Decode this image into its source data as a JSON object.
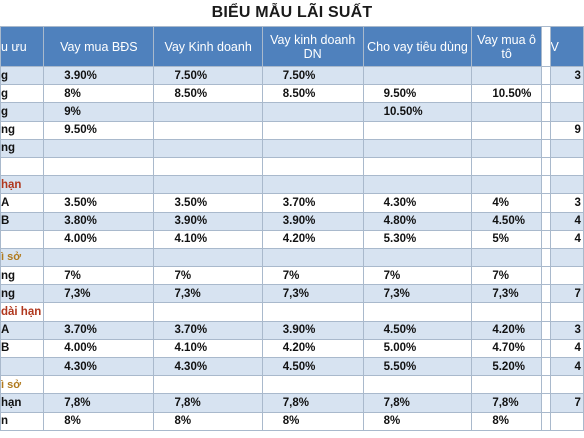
{
  "title": "BIỂU MẪU LÃI SUẤT",
  "headers": [
    "u ưu",
    "Vay mua BĐS",
    "Vay Kinh doanh",
    "Vay kinh doanh DN",
    "Cho vay tiêu dùng",
    "Vay mua ô tô",
    "V"
  ],
  "rows": [
    {
      "style": "shaded",
      "label": "g",
      "labelClass": "",
      "cells": [
        "3.90%",
        "7.50%",
        "7.50%",
        "",
        "",
        "3"
      ]
    },
    {
      "style": "white",
      "label": "g",
      "labelClass": "",
      "cells": [
        "8%",
        "8.50%",
        "8.50%",
        "9.50%",
        "10.50%",
        ""
      ]
    },
    {
      "style": "shaded",
      "label": "g",
      "labelClass": "",
      "cells": [
        "9%",
        "",
        "",
        "10.50%",
        "",
        ""
      ]
    },
    {
      "style": "white",
      "label": "ng",
      "labelClass": "",
      "cells": [
        "9.50%",
        "",
        "",
        "",
        "",
        "9"
      ]
    },
    {
      "style": "shaded",
      "label": "ng",
      "labelClass": "",
      "cells": [
        "",
        "",
        "",
        "",
        "",
        ""
      ]
    },
    {
      "style": "white",
      "label": "",
      "labelClass": "",
      "cells": [
        "",
        "",
        "",
        "",
        "",
        ""
      ]
    },
    {
      "style": "shaded",
      "label": "hạn",
      "labelClass": "sec",
      "cells": [
        "",
        "",
        "",
        "",
        "",
        ""
      ]
    },
    {
      "style": "white",
      "label": "A",
      "labelClass": "",
      "cells": [
        "3.50%",
        "3.50%",
        "3.70%",
        "4.30%",
        "4%",
        "3"
      ]
    },
    {
      "style": "shaded",
      "label": "B",
      "labelClass": "",
      "cells": [
        "3.80%",
        "3.90%",
        "3.90%",
        "4.80%",
        "4.50%",
        "4"
      ]
    },
    {
      "style": "white",
      "label": "",
      "labelClass": "",
      "cells": [
        "4.00%",
        "4.10%",
        "4.20%",
        "5.30%",
        "5%",
        "4"
      ]
    },
    {
      "style": "shaded",
      "label": "ì sở",
      "labelClass": "subsec",
      "cells": [
        "",
        "",
        "",
        "",
        "",
        ""
      ]
    },
    {
      "style": "white",
      "label": "ng",
      "labelClass": "",
      "cells": [
        "7%",
        "7%",
        "7%",
        "7%",
        "7%",
        ""
      ]
    },
    {
      "style": "shaded",
      "label": "ng",
      "labelClass": "",
      "cells": [
        "7,3%",
        "7,3%",
        "7,3%",
        "7,3%",
        "7,3%",
        "7"
      ]
    },
    {
      "style": "white",
      "label": "dài hạn",
      "labelClass": "sec",
      "cells": [
        "",
        "",
        "",
        "",
        "",
        ""
      ]
    },
    {
      "style": "shaded",
      "label": "A",
      "labelClass": "",
      "cells": [
        "3.70%",
        "3.70%",
        "3.90%",
        "4.50%",
        "4.20%",
        "3"
      ]
    },
    {
      "style": "white",
      "label": "B",
      "labelClass": "",
      "cells": [
        "4.00%",
        "4.10%",
        "4.20%",
        "5.00%",
        "4.70%",
        "4"
      ]
    },
    {
      "style": "shaded",
      "label": "",
      "labelClass": "",
      "cells": [
        "4.30%",
        "4.30%",
        "4.50%",
        "5.50%",
        "5.20%",
        "4"
      ]
    },
    {
      "style": "white",
      "label": "ì sở",
      "labelClass": "subsec",
      "cells": [
        "",
        "",
        "",
        "",
        "",
        ""
      ]
    },
    {
      "style": "shaded",
      "label": "hạn",
      "labelClass": "",
      "cells": [
        "7,8%",
        "7,8%",
        "7,8%",
        "7,8%",
        "7,8%",
        "7"
      ]
    },
    {
      "style": "white",
      "label": "n",
      "labelClass": "",
      "cells": [
        "8%",
        "8%",
        "8%",
        "8%",
        "8%",
        ""
      ]
    }
  ]
}
